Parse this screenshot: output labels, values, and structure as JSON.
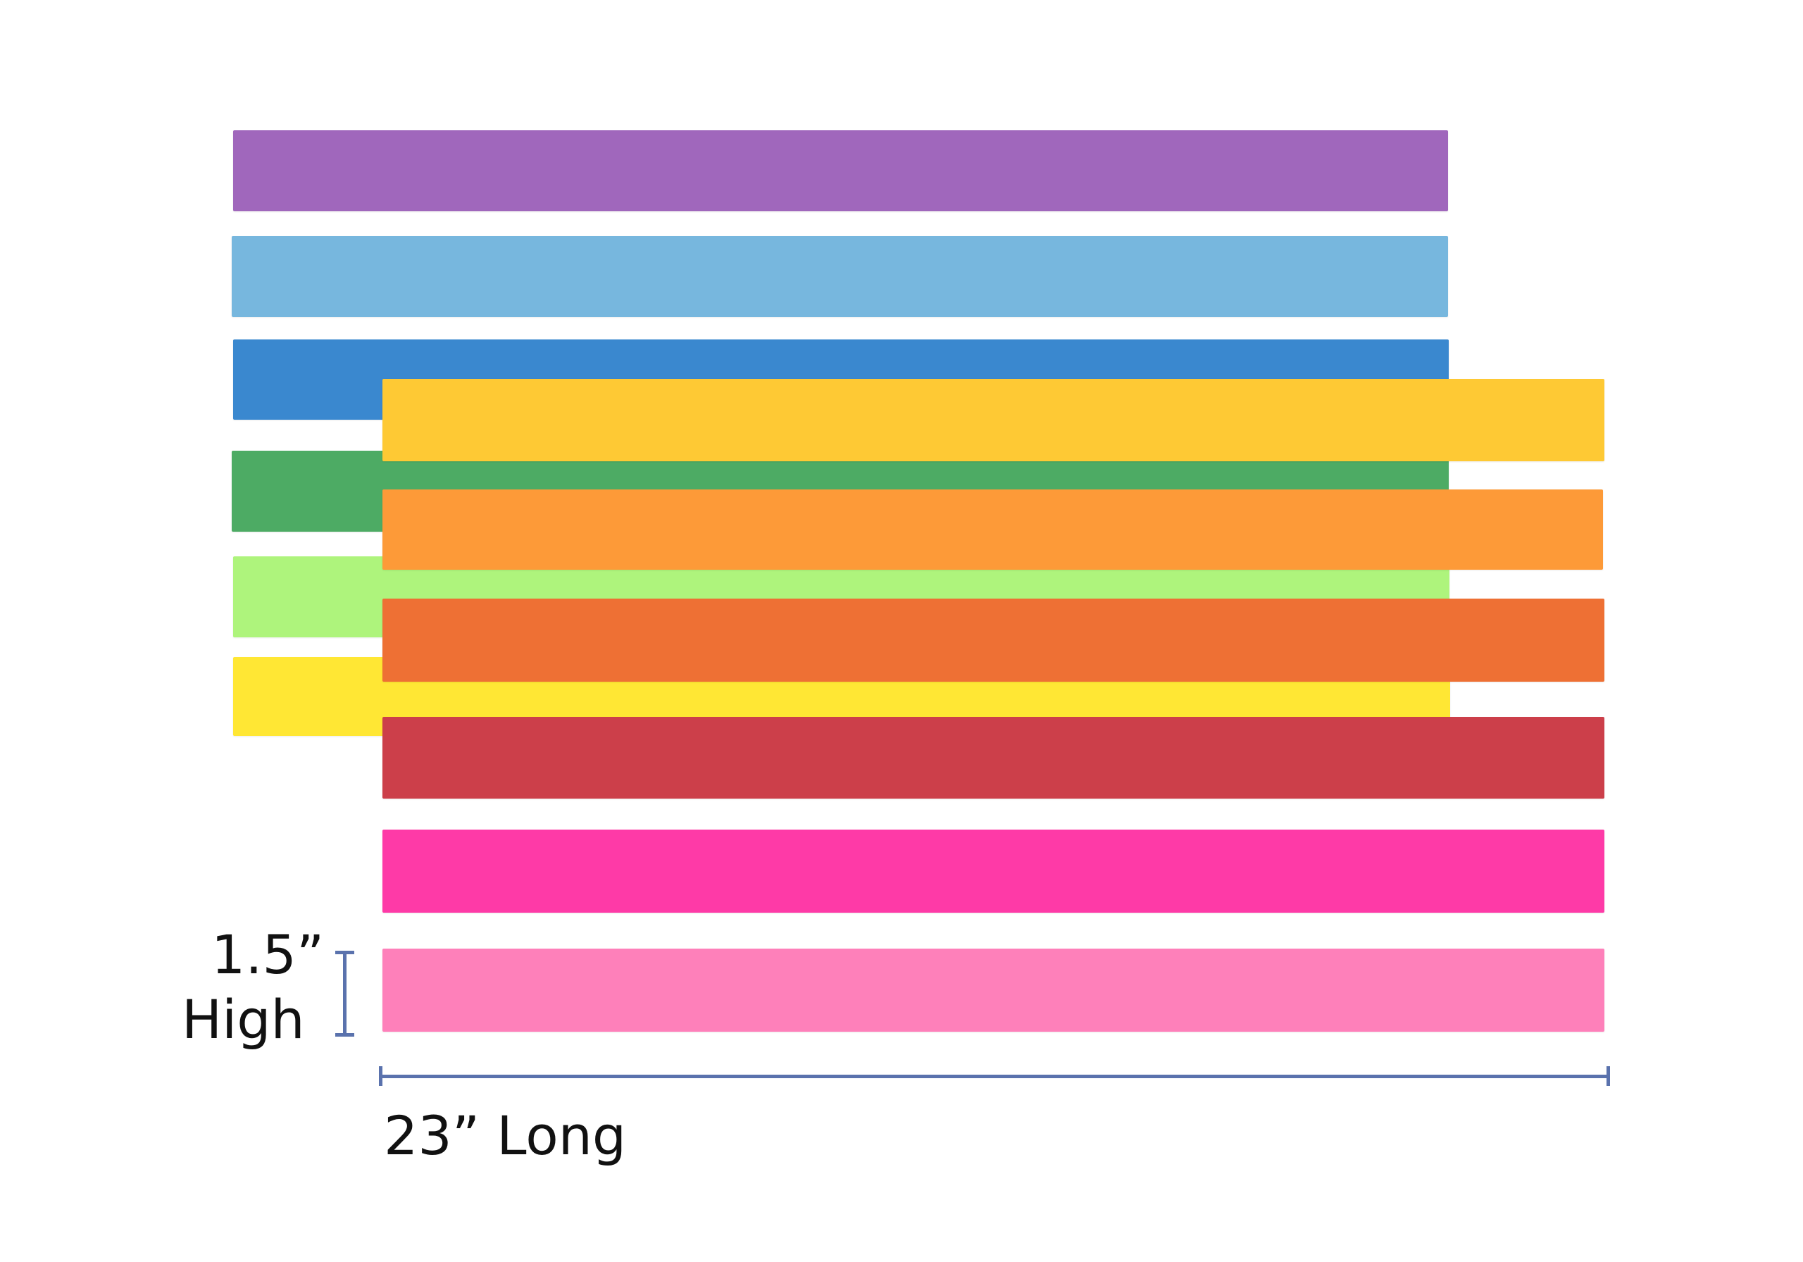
{
  "strips": [
    {
      "name": "purple",
      "color": "#a067bc"
    },
    {
      "name": "light-blue",
      "color": "#77b7de"
    },
    {
      "name": "blue",
      "color": "#3a88cf"
    },
    {
      "name": "green",
      "color": "#4dab64"
    },
    {
      "name": "light-green",
      "color": "#aef47c"
    },
    {
      "name": "yellow",
      "color": "#ffe734"
    },
    {
      "name": "golden-yellow",
      "color": "#fec934"
    },
    {
      "name": "orange",
      "color": "#fd9a38"
    },
    {
      "name": "dark-orange",
      "color": "#ee7034"
    },
    {
      "name": "red",
      "color": "#cc3f4a"
    },
    {
      "name": "magenta",
      "color": "#fe3aa7"
    },
    {
      "name": "pink",
      "color": "#fe80ba"
    }
  ],
  "labels": {
    "height_line1": "1.5”",
    "height_line2": "High",
    "length": "23” Long"
  },
  "measure_color": "#5a72ad"
}
